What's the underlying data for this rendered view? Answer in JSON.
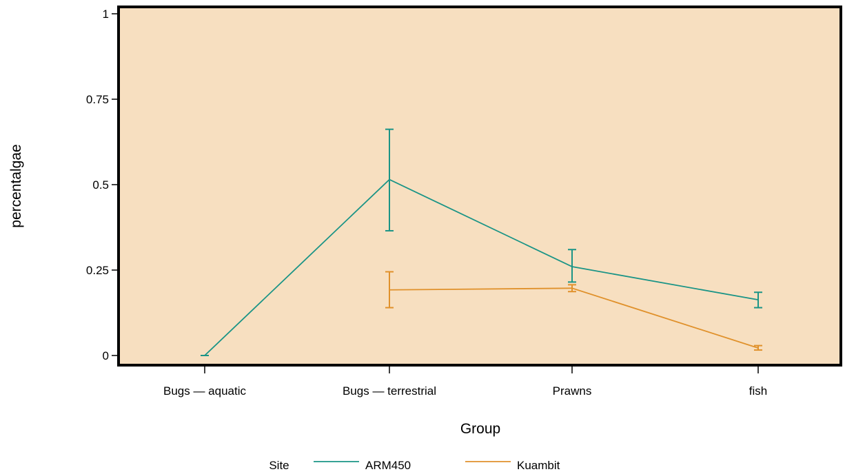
{
  "chart_data": {
    "type": "line",
    "title": "",
    "xlabel": "Group",
    "ylabel": "percentalgae",
    "categories": [
      "Bugs — aquatic",
      "Bugs — terrestrial",
      "Prawns",
      "fish"
    ],
    "ylim": [
      0,
      1
    ],
    "yticks": [
      0,
      0.25,
      0.5,
      0.75,
      1
    ],
    "ytick_labels": [
      "0",
      "0.25",
      "0.5",
      "0.75",
      "1"
    ],
    "series": [
      {
        "name": "ARM450",
        "color": "#1a9486",
        "values": [
          0.0,
          0.515,
          0.26,
          0.163
        ],
        "lower": [
          0.0,
          0.365,
          0.215,
          0.14
        ],
        "upper": [
          0.0,
          0.662,
          0.31,
          0.185
        ]
      },
      {
        "name": "Kuambit",
        "color": "#e0912b",
        "values": [
          null,
          0.192,
          0.197,
          0.022
        ],
        "lower": [
          null,
          0.14,
          0.187,
          0.016
        ],
        "upper": [
          null,
          0.245,
          0.207,
          0.029
        ]
      }
    ],
    "legend": {
      "title": "Site",
      "position": "bottom"
    },
    "plot_background": "#f7dfc0",
    "grid": false
  }
}
